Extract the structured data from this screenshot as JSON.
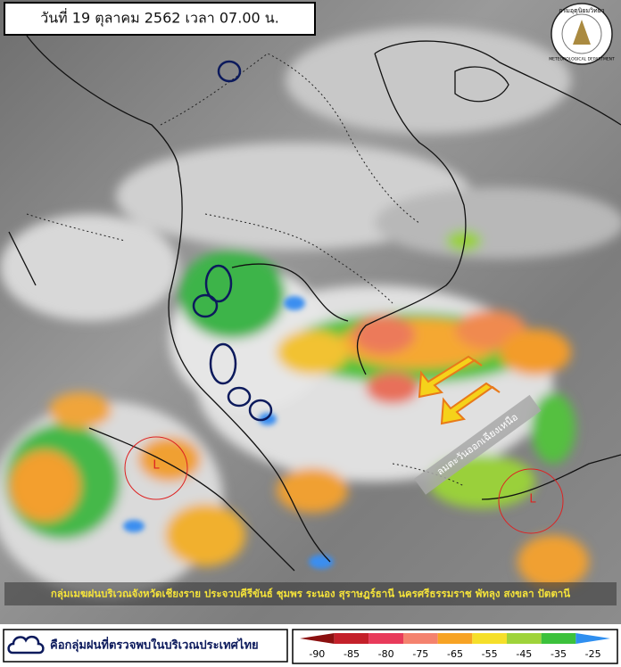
{
  "header": {
    "title": "วันที่ 19 ตุลาคม 2562 เวลา 07.00 น."
  },
  "logo": {
    "name_th": "กรมอุตุนิยมวิทยา",
    "name_en": "METEOROLOGICAL DEPARTMENT"
  },
  "annotations": {
    "low_left": "L",
    "low_right": "L",
    "wind": "ลมตะวันออกเฉียงเหนือ"
  },
  "caption": "กลุ่มเมฆฝนบริเวณจังหวัดเชียงราย ประจวบคีรีขันธ์ ชุมพร ระนอง สุราษฎร์ธานี นครศรีธรรมราช พัทลุง สงขลา ปัตตานี",
  "legend": {
    "label": "คือกลุ่มฝนที่ตรวจพบในบริเวณประเทศไทย"
  },
  "colorbar": {
    "ticks": [
      -90,
      -85,
      -80,
      -75,
      -65,
      -55,
      -45,
      -35,
      -25
    ],
    "colors": [
      "#8b1010",
      "#c4202a",
      "#e83a5a",
      "#f4826e",
      "#f7a324",
      "#f5df2a",
      "#9fd33a",
      "#3cc13c",
      "#2f8ff0"
    ]
  }
}
